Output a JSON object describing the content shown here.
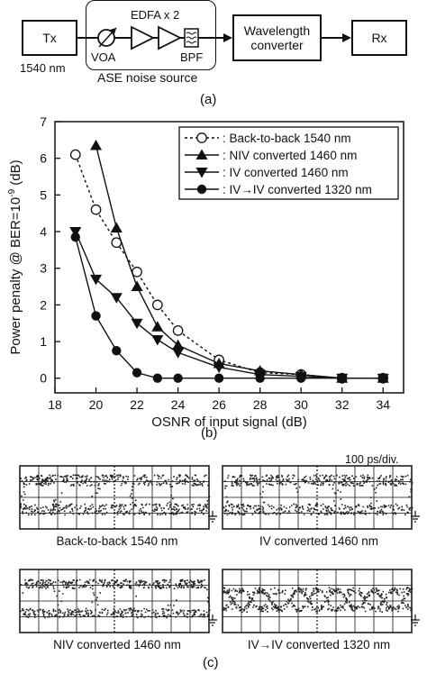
{
  "diagram": {
    "tx_label": "Tx",
    "tx_wavelength": "1540 nm",
    "edfa_label": "EDFA x 2",
    "voa_label": "VOA",
    "bpf_label": "BPF",
    "ase_label": "ASE noise source",
    "converter_label": "Wavelength converter",
    "rx_label": "Rx",
    "caption": "(a)"
  },
  "chart_data": {
    "type": "line",
    "ylabel": "Power penalty @ BER=10",
    "ylabel_exp": "-9",
    "ylabel_unit": "(dB)",
    "xlabel": "OSNR of input signal (dB)",
    "xlim": [
      18,
      35
    ],
    "ylim": [
      -0.4,
      7
    ],
    "xticks": [
      18,
      20,
      22,
      24,
      26,
      28,
      30,
      32,
      34
    ],
    "yticks": [
      0,
      1,
      2,
      3,
      4,
      5,
      6,
      7
    ],
    "grid": false,
    "legend_position": "top-right",
    "caption": "(b)",
    "series": [
      {
        "name": "Back-to-back 1540 nm",
        "marker": "circle-open",
        "line": "dashed",
        "x": [
          19,
          20,
          21,
          22,
          23,
          24,
          26,
          28,
          30,
          32,
          34
        ],
        "y": [
          6.1,
          4.6,
          3.7,
          2.9,
          2.0,
          1.3,
          0.5,
          0.15,
          0.1,
          0.0,
          0.0
        ]
      },
      {
        "name": "NIV converted 1460 nm",
        "marker": "triangle-up",
        "line": "solid",
        "x": [
          20,
          21,
          22,
          23,
          24,
          26,
          28,
          30,
          32,
          34
        ],
        "y": [
          6.35,
          4.1,
          2.5,
          1.4,
          0.9,
          0.4,
          0.2,
          0.1,
          0.0,
          0.0
        ]
      },
      {
        "name": "IV converted 1460 nm",
        "marker": "triangle-down",
        "line": "solid",
        "x": [
          19,
          20,
          21,
          22,
          23,
          24,
          26,
          28,
          30,
          32,
          34
        ],
        "y": [
          4.0,
          2.7,
          2.2,
          1.5,
          1.05,
          0.7,
          0.3,
          0.1,
          0.05,
          0.0,
          0.0
        ]
      },
      {
        "name": "IV→IV converted 1320 nm",
        "marker": "circle-filled",
        "line": "solid",
        "x": [
          19,
          20,
          21,
          22,
          23,
          24,
          26,
          28,
          30,
          32,
          34
        ],
        "y": [
          3.85,
          1.7,
          0.75,
          0.15,
          0.0,
          0.0,
          0.0,
          0.0,
          0.0,
          0.0,
          0.0
        ]
      }
    ]
  },
  "eyes": {
    "timescale": "100 ps/div.",
    "caption": "(c)",
    "panels": [
      {
        "label": "Back-to-back 1540 nm",
        "style": "nrz"
      },
      {
        "label": "IV converted 1460 nm",
        "style": "nrz-open"
      },
      {
        "label": "NIV converted 1460 nm",
        "style": "nrz-dense"
      },
      {
        "label": "IV→IV converted 1320 nm",
        "style": "cross"
      }
    ]
  }
}
